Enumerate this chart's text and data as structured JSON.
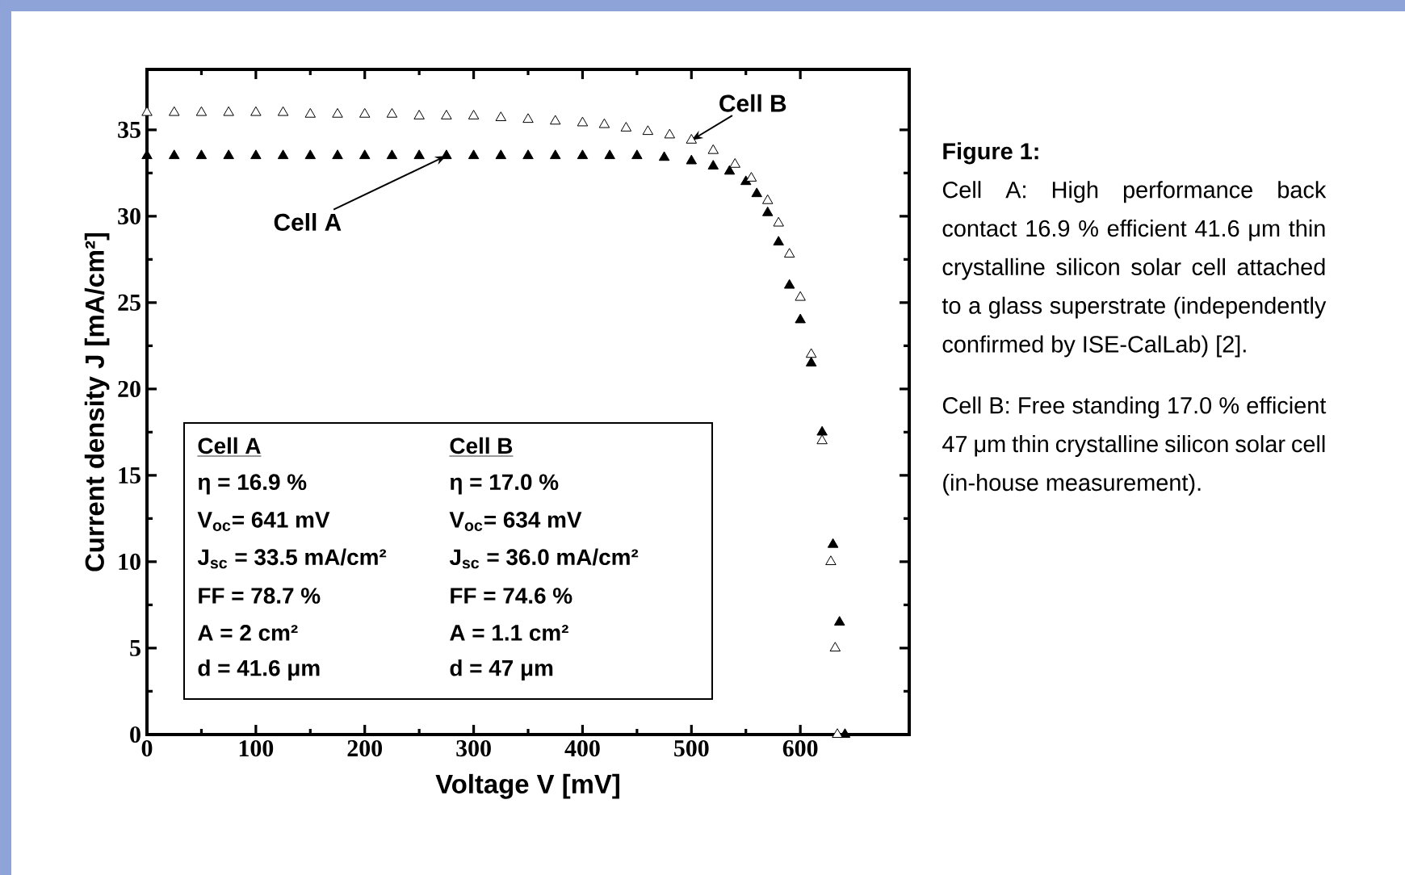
{
  "chart_data": {
    "type": "scatter",
    "title": "Figure 1:",
    "xlabel": "Voltage V [mV]",
    "ylabel": "Current density J [mA/cm²]",
    "xlim": [
      0,
      700
    ],
    "ylim": [
      0,
      38.5
    ],
    "xticks": [
      0,
      100,
      200,
      300,
      400,
      500,
      600
    ],
    "yticks": [
      0,
      5,
      10,
      15,
      20,
      25,
      30,
      35
    ],
    "marker": "triangle",
    "series": [
      {
        "color": "#000000",
        "x": [
          0,
          25,
          50,
          75,
          100,
          125,
          150,
          175,
          200,
          225,
          250,
          275,
          300,
          325,
          350,
          375,
          400,
          425,
          450,
          475,
          500,
          520,
          535,
          550,
          560,
          570,
          580,
          590,
          600,
          610,
          620,
          630,
          636,
          641
        ],
        "values": [
          33.5,
          33.5,
          33.5,
          33.5,
          33.5,
          33.5,
          33.5,
          33.5,
          33.5,
          33.5,
          33.5,
          33.5,
          33.5,
          33.5,
          33.5,
          33.5,
          33.5,
          33.5,
          33.5,
          33.4,
          33.2,
          32.9,
          32.6,
          32.0,
          31.3,
          30.2,
          28.5,
          26.0,
          24.0,
          21.5,
          17.5,
          11.0,
          6.5,
          0
        ]
      },
      {
        "color": "#ffffff",
        "x": [
          0,
          25,
          50,
          75,
          100,
          125,
          150,
          175,
          200,
          225,
          250,
          275,
          300,
          325,
          350,
          375,
          400,
          420,
          440,
          460,
          480,
          500,
          520,
          540,
          555,
          570,
          580,
          590,
          600,
          610,
          620,
          628,
          632,
          634
        ],
        "values": [
          36.0,
          36.0,
          36.0,
          36.0,
          36.0,
          36.0,
          35.9,
          35.9,
          35.9,
          35.9,
          35.8,
          35.8,
          35.8,
          35.7,
          35.6,
          35.5,
          35.4,
          35.3,
          35.1,
          34.9,
          34.7,
          34.4,
          33.8,
          33.0,
          32.2,
          30.9,
          29.6,
          27.8,
          25.3,
          22.0,
          17.0,
          10.0,
          5.0,
          0
        ]
      }
    ],
    "annotations": [
      {
        "text": "Cell A",
        "x": 275,
        "y": 33.5
      },
      {
        "text": "Cell B",
        "x": 500,
        "y": 34.4
      },
      "Cell A",
      "Cell B",
      "η = 16.9 %",
      "η = 17.0 %",
      "V$_{oc}$= 641 mV",
      "V$_{oc}$= 634 mV",
      "J$_{sc}$ = 33.5 mA/cm²",
      "J$_{sc}$ = 36.0 mA/cm²",
      "FF = 78.7 %",
      "FF = 74.6 %",
      "A = 2 cm²",
      "A = 1.1 cm²",
      "d = 41.6 μm",
      "d = 47 μm",
      "Cell A: High performance back contact 16.9 % efficient 41.6 μm thin crystalline silicon solar cell attached to a glass superstrate (independently confirmed by ISE-CalLab) [2].",
      "Cell B: Free standing 17.0 % efficient 47 μm thin crystalline silicon solar cell (in-house measurement)."
    ]
  }
}
